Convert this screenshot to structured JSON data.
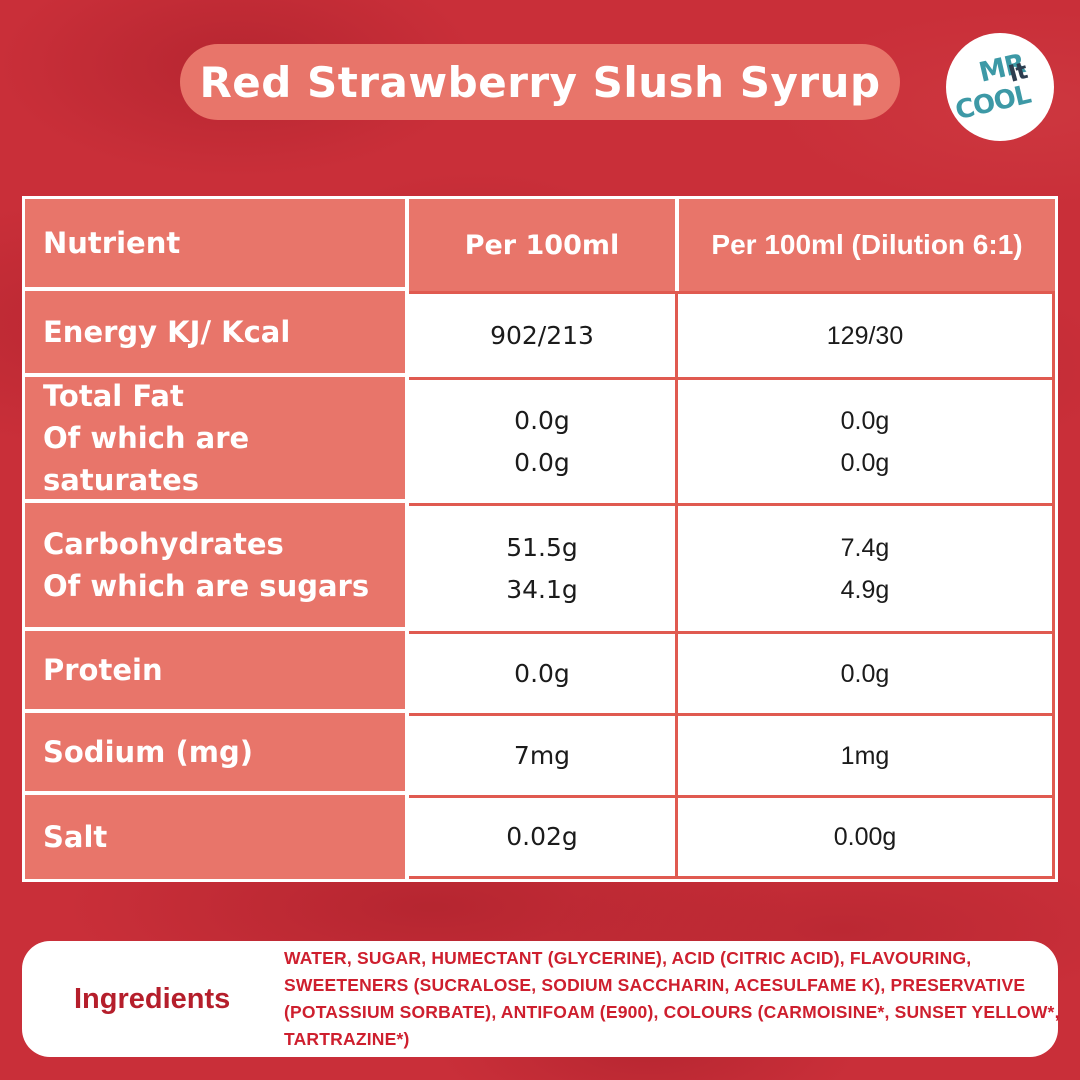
{
  "title": "Red Strawberry Slush Syrup",
  "logo": {
    "word1": "MR",
    "word2": "It",
    "word3": "COOL"
  },
  "colors": {
    "background_red": "#C92F39",
    "salmon": "#E8756A",
    "cell_border_salmon": "#E05A50",
    "ingredients_red": "#CE1F2E",
    "logo_teal": "#3D99A6",
    "logo_navy": "#2E3D4F"
  },
  "table": {
    "headers": [
      "Nutrient",
      "Per 100ml",
      "Per 100ml (Dilution 6:1)"
    ],
    "rows": [
      {
        "label": "Energy KJ/ Kcal",
        "per100ml": "902/213",
        "dilution": "129/30"
      },
      {
        "label": "Total Fat",
        "label2": "Of which are saturates",
        "per100ml": "0.0g",
        "per100ml2": "0.0g",
        "dilution": "0.0g",
        "dilution2": "0.0g"
      },
      {
        "label": "Carbohydrates",
        "label2": "Of which are sugars",
        "per100ml": "51.5g",
        "per100ml2": "34.1g",
        "dilution": "7.4g",
        "dilution2": "4.9g"
      },
      {
        "label": "Protein",
        "per100ml": "0.0g",
        "dilution": "0.0g"
      },
      {
        "label": "Sodium (mg)",
        "per100ml": "7mg",
        "dilution": "1mg"
      },
      {
        "label": "Salt",
        "per100ml": "0.02g",
        "dilution": "0.00g"
      }
    ]
  },
  "ingredients": {
    "label": "Ingredients",
    "text": "WATER, SUGAR, HUMECTANT (GLYCERINE), ACID (CITRIC ACID), FLAVOURING, SWEETENERS (SUCRALOSE, SODIUM SACCHARIN, ACESULFAME K), PRESERVATIVE (POTASSIUM SORBATE), ANTIFOAM (E900), COLOURS (CARMOISINE*, SUNSET YELLOW*, TARTRAZINE*)"
  }
}
